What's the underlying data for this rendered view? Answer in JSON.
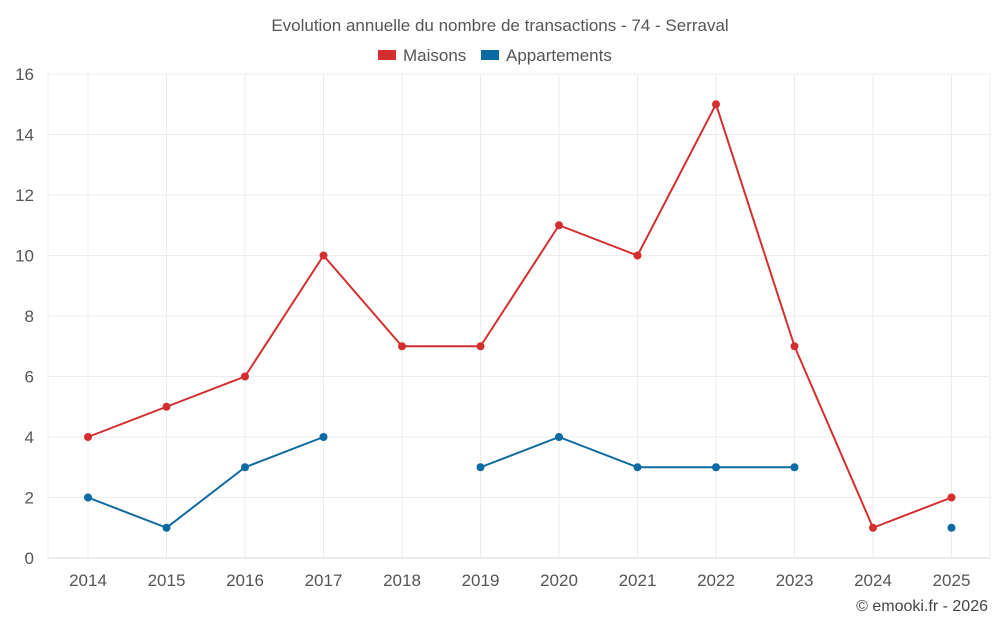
{
  "chart_data": {
    "type": "line",
    "title": "Evolution annuelle du nombre de transactions - 74 - Serraval",
    "xlabel": "",
    "ylabel": "",
    "ylim": [
      0,
      16
    ],
    "yticks": [
      "0",
      "2",
      "4",
      "6",
      "8",
      "10",
      "12",
      "14",
      "16"
    ],
    "categories": [
      "2014",
      "2015",
      "2016",
      "2017",
      "2018",
      "2019",
      "2020",
      "2021",
      "2022",
      "2023",
      "2024",
      "2025"
    ],
    "grid": true,
    "legend_position": "top-center",
    "series": [
      {
        "name": "Maisons",
        "color": "#d32f2f",
        "values": [
          4,
          5,
          6,
          10,
          7,
          7,
          11,
          10,
          15,
          7,
          1,
          2
        ]
      },
      {
        "name": "Appartements",
        "color": "#0b6aa2",
        "values": [
          2,
          1,
          3,
          4,
          null,
          3,
          4,
          3,
          3,
          3,
          null,
          1
        ]
      }
    ],
    "credit": "© emooki.fr - 2026"
  }
}
